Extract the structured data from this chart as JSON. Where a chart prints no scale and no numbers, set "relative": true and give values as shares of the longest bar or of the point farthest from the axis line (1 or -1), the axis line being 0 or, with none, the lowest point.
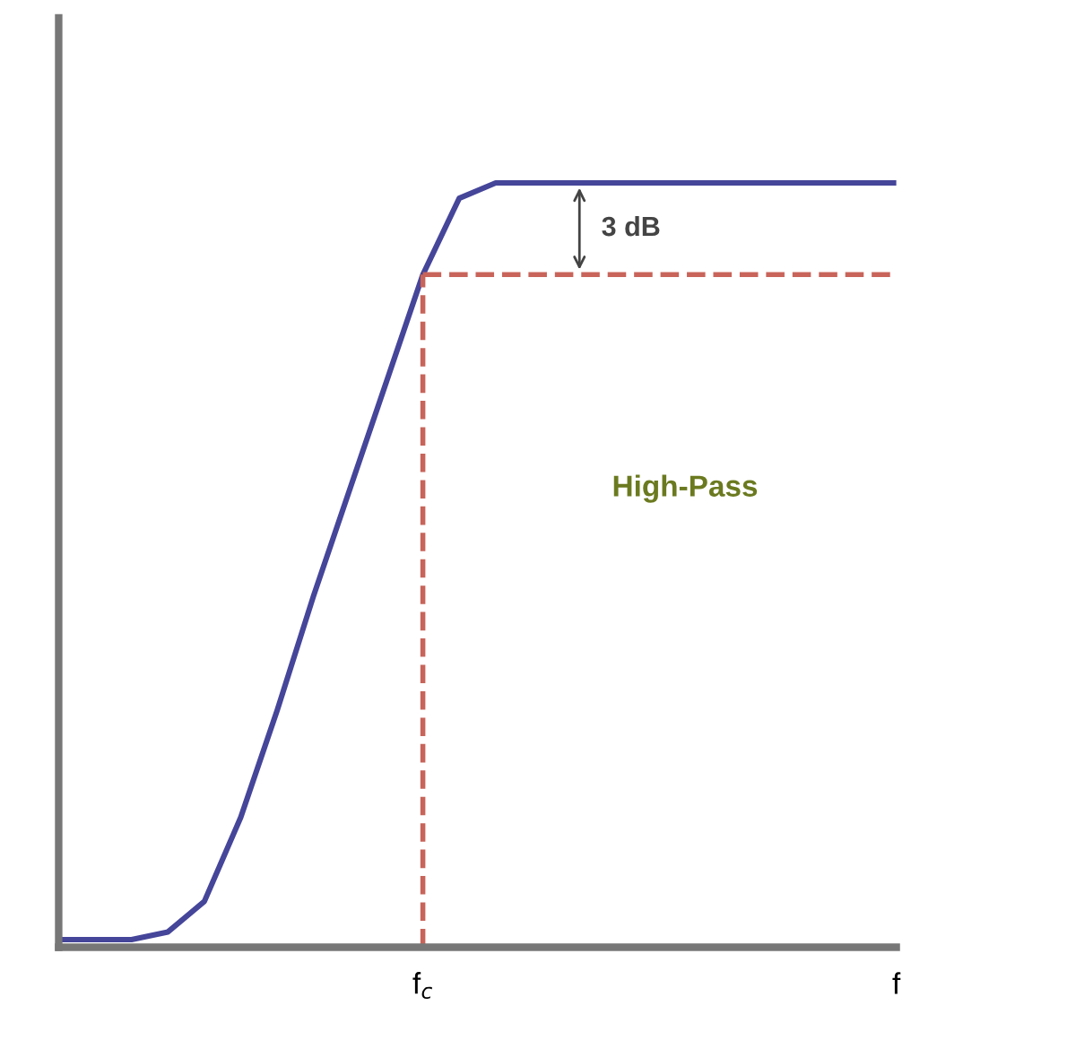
{
  "chart_data": {
    "type": "line",
    "relative": true,
    "categories": [
      null,
      null,
      null,
      null,
      null,
      null,
      null,
      null,
      null,
      null,
      "f$_{c}$",
      null,
      null,
      null,
      null,
      null,
      null,
      null,
      null,
      null,
      null,
      null,
      null,
      "f"
    ],
    "series": [
      {
        "color": "#45459a",
        "values": [
          0.01,
          0.01,
          0.01,
          0.02,
          0.06,
          0.17,
          0.31,
          0.46,
          0.6,
          0.74,
          0.88,
          0.98,
          1.0,
          1.0,
          1.0,
          1.0,
          1.0,
          1.0,
          1.0,
          1.0,
          1.0,
          1.0,
          1.0,
          1.0
        ]
      }
    ],
    "ref_lines": [
      {
        "axis": "x",
        "value": "f$_{c}$",
        "color": "#c8645a",
        "line_style": "dashed"
      },
      {
        "axis": "y",
        "value": 0.88,
        "color": "#c8645a",
        "line_style": "dashed"
      }
    ],
    "annotations": [
      "3 dB",
      "High-Pass"
    ],
    "tick_labels": "x",
    "marker": "none",
    "line_style": "solid"
  }
}
